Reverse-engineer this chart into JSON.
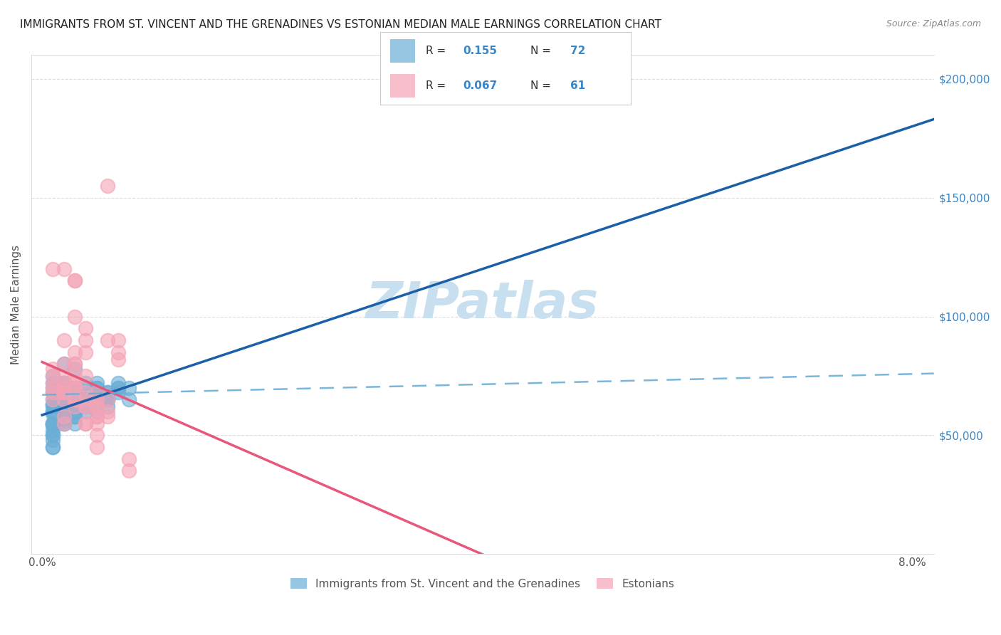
{
  "title": "IMMIGRANTS FROM ST. VINCENT AND THE GRENADINES VS ESTONIAN MEDIAN MALE EARNINGS CORRELATION CHART",
  "source": "Source: ZipAtlas.com",
  "ylabel": "Median Male Earnings",
  "y_ticks": [
    0,
    50000,
    100000,
    150000,
    200000
  ],
  "y_tick_labels": [
    "",
    "$50,000",
    "$100,000",
    "$150,000",
    "$200,000"
  ],
  "legend_entry1_r": "0.155",
  "legend_entry1_n": "72",
  "legend_entry2_r": "0.067",
  "legend_entry2_n": "61",
  "blue_color": "#6aaed6",
  "pink_color": "#f4a3b5",
  "blue_line_color": "#1a5fa8",
  "pink_line_color": "#e8567a",
  "watermark_color": "#c8dff0",
  "blue_scatter_x": [
    0.001,
    0.001,
    0.002,
    0.001,
    0.002,
    0.001,
    0.001,
    0.003,
    0.001,
    0.002,
    0.001,
    0.001,
    0.002,
    0.001,
    0.001,
    0.001,
    0.001,
    0.001,
    0.001,
    0.002,
    0.001,
    0.001,
    0.001,
    0.002,
    0.003,
    0.003,
    0.002,
    0.003,
    0.001,
    0.001,
    0.002,
    0.002,
    0.003,
    0.002,
    0.003,
    0.004,
    0.003,
    0.004,
    0.003,
    0.004,
    0.002,
    0.005,
    0.004,
    0.003,
    0.004,
    0.005,
    0.006,
    0.004,
    0.005,
    0.004,
    0.005,
    0.006,
    0.005,
    0.006,
    0.007,
    0.006,
    0.007,
    0.006,
    0.007,
    0.007,
    0.008,
    0.008,
    0.003,
    0.002,
    0.004,
    0.002,
    0.001,
    0.005,
    0.006,
    0.003,
    0.002,
    0.001
  ],
  "blue_scatter_y": [
    62000,
    68000,
    72000,
    65000,
    58000,
    55000,
    60000,
    70000,
    63000,
    67000,
    50000,
    52000,
    57000,
    60000,
    48000,
    54000,
    59000,
    63000,
    45000,
    65000,
    70000,
    72000,
    75000,
    68000,
    62000,
    58000,
    55000,
    60000,
    50000,
    45000,
    72000,
    65000,
    68000,
    60000,
    55000,
    62000,
    65000,
    70000,
    58000,
    72000,
    55000,
    68000,
    65000,
    60000,
    62000,
    70000,
    68000,
    65000,
    72000,
    60000,
    65000,
    68000,
    70000,
    65000,
    70000,
    65000,
    68000,
    62000,
    70000,
    72000,
    65000,
    70000,
    78000,
    80000,
    65000,
    62000,
    55000,
    60000,
    65000,
    62000,
    60000,
    55000
  ],
  "pink_scatter_x": [
    0.001,
    0.001,
    0.002,
    0.001,
    0.001,
    0.002,
    0.001,
    0.002,
    0.003,
    0.003,
    0.002,
    0.003,
    0.002,
    0.002,
    0.003,
    0.003,
    0.003,
    0.002,
    0.004,
    0.004,
    0.003,
    0.004,
    0.003,
    0.003,
    0.005,
    0.005,
    0.004,
    0.005,
    0.004,
    0.005,
    0.006,
    0.005,
    0.006,
    0.006,
    0.007,
    0.007,
    0.008,
    0.004,
    0.003,
    0.002,
    0.001,
    0.002,
    0.003,
    0.004,
    0.005,
    0.006,
    0.005,
    0.004,
    0.002,
    0.003,
    0.004,
    0.005,
    0.003,
    0.002,
    0.002,
    0.001,
    0.004,
    0.006,
    0.005,
    0.007,
    0.008
  ],
  "pink_scatter_y": [
    78000,
    70000,
    75000,
    68000,
    65000,
    80000,
    72000,
    68000,
    80000,
    115000,
    120000,
    75000,
    70000,
    68000,
    80000,
    72000,
    85000,
    90000,
    90000,
    75000,
    100000,
    85000,
    65000,
    70000,
    65000,
    62000,
    55000,
    58000,
    55000,
    68000,
    90000,
    62000,
    58000,
    65000,
    90000,
    82000,
    40000,
    65000,
    62000,
    58000,
    120000,
    65000,
    115000,
    68000,
    45000,
    60000,
    55000,
    62000,
    55000,
    65000,
    62000,
    58000,
    70000,
    68000,
    72000,
    75000,
    95000,
    155000,
    50000,
    85000,
    35000
  ]
}
